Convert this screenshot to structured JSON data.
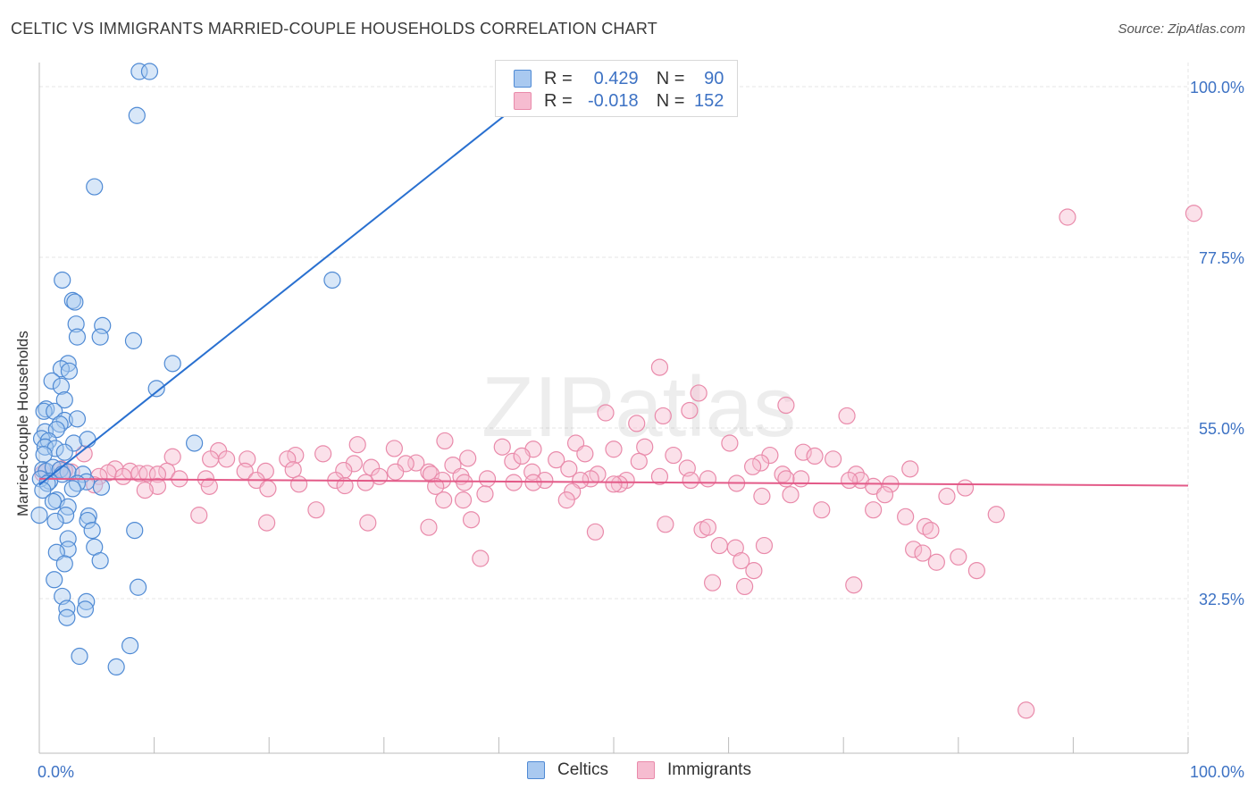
{
  "title": "CELTIC VS IMMIGRANTS MARRIED-COUPLE HOUSEHOLDS CORRELATION CHART",
  "source": "Source: ZipAtlas.com",
  "watermark": "ZIPatlas",
  "legend_stats": {
    "celtics": {
      "r_label": "R =",
      "r_value": "0.429",
      "n_label": "N =",
      "n_value": "90"
    },
    "immigrants": {
      "r_label": "R =",
      "r_value": "-0.018",
      "n_label": "N =",
      "n_value": "152"
    }
  },
  "legend_bottom": {
    "celtics": "Celtics",
    "immigrants": "Immigrants"
  },
  "colors": {
    "celtics_fill": "#a9c9f0",
    "celtics_stroke": "#4f8ad4",
    "celtics_line": "#2970d0",
    "immigrants_fill": "#f6bcd0",
    "immigrants_stroke": "#e98aaa",
    "immigrants_line": "#e35a88",
    "axis_text": "#3d72c4",
    "grid": "#e6e6e6"
  },
  "chart_data": {
    "type": "scatter",
    "title": "CELTIC VS IMMIGRANTS MARRIED-COUPLE HOUSEHOLDS CORRELATION CHART",
    "xlabel": "",
    "ylabel": "Married-couple Households",
    "xlim": [
      0,
      100
    ],
    "ylim": [
      12,
      102
    ],
    "x_tick_labels": [
      "0.0%",
      "100.0%"
    ],
    "y_ticks": [
      32.5,
      55.0,
      77.5,
      100.0
    ],
    "y_tick_labels": [
      "32.5%",
      "55.0%",
      "77.5%",
      "100.0%"
    ],
    "grid": true,
    "legend_position": "top-center",
    "series": [
      {
        "name": "Celtics",
        "r": 0.429,
        "n": 90,
        "trend": {
          "x": [
            0,
            45.5
          ],
          "y": [
            47.5,
            102.2
          ]
        },
        "points": [
          [
            8.7,
            102
          ],
          [
            9.6,
            102
          ],
          [
            8.5,
            96.2
          ],
          [
            4.8,
            86.8
          ],
          [
            25.5,
            74.5
          ],
          [
            2.0,
            74.5
          ],
          [
            2.9,
            71.8
          ],
          [
            3.1,
            71.6
          ],
          [
            3.2,
            68.7
          ],
          [
            5.5,
            68.5
          ],
          [
            3.3,
            67
          ],
          [
            5.3,
            67
          ],
          [
            8.2,
            66.5
          ],
          [
            11.6,
            63.5
          ],
          [
            2.5,
            63.5
          ],
          [
            1.9,
            62.8
          ],
          [
            2.6,
            62.5
          ],
          [
            1.1,
            61.2
          ],
          [
            1.9,
            60.5
          ],
          [
            2.2,
            58.7
          ],
          [
            10.2,
            60.2
          ],
          [
            0.6,
            57.5
          ],
          [
            0.4,
            57.2
          ],
          [
            1.3,
            57.2
          ],
          [
            2.2,
            56
          ],
          [
            3.3,
            56.2
          ],
          [
            1.8,
            55.5
          ],
          [
            0.5,
            54.5
          ],
          [
            1.5,
            54.8
          ],
          [
            0.2,
            53.6
          ],
          [
            0.8,
            53.3
          ],
          [
            3.0,
            53.0
          ],
          [
            13.5,
            53.0
          ],
          [
            4.2,
            53.5
          ],
          [
            0.5,
            52.5
          ],
          [
            1.4,
            52.3
          ],
          [
            2.2,
            51.8
          ],
          [
            0.4,
            51.5
          ],
          [
            0.3,
            49.5
          ],
          [
            0.6,
            49.3
          ],
          [
            1.2,
            49.8
          ],
          [
            1.8,
            49.5
          ],
          [
            2.5,
            49.2
          ],
          [
            3.8,
            48.9
          ],
          [
            2.0,
            48.9
          ],
          [
            0.9,
            48.0
          ],
          [
            0.1,
            48.3
          ],
          [
            4.1,
            47.9
          ],
          [
            3.3,
            47.7
          ],
          [
            0.7,
            47.7
          ],
          [
            5.4,
            47.2
          ],
          [
            2.9,
            47.0
          ],
          [
            0.3,
            46.8
          ],
          [
            0.0,
            43.5
          ],
          [
            1.5,
            45.5
          ],
          [
            1.2,
            45.3
          ],
          [
            4.3,
            43.4
          ],
          [
            2.5,
            44.6
          ],
          [
            4.2,
            42.8
          ],
          [
            2.3,
            43.5
          ],
          [
            1.4,
            42.7
          ],
          [
            4.6,
            41.5
          ],
          [
            8.3,
            41.5
          ],
          [
            2.5,
            40.4
          ],
          [
            4.8,
            39.3
          ],
          [
            2.5,
            39.0
          ],
          [
            1.5,
            38.6
          ],
          [
            5.3,
            37.5
          ],
          [
            2.2,
            37.1
          ],
          [
            1.3,
            35.0
          ],
          [
            8.6,
            34.0
          ],
          [
            2.0,
            32.8
          ],
          [
            4.1,
            32.1
          ],
          [
            2.4,
            31.2
          ],
          [
            4.0,
            31.1
          ],
          [
            2.4,
            30.0
          ],
          [
            7.9,
            26.3
          ],
          [
            3.5,
            24.9
          ],
          [
            6.7,
            23.5
          ]
        ]
      },
      {
        "name": "Immigrants",
        "r": -0.018,
        "n": 152,
        "trend": {
          "x": [
            0,
            100
          ],
          "y": [
            48.3,
            47.4
          ]
        },
        "points": [
          [
            89.5,
            82.8
          ],
          [
            100.5,
            83.3
          ],
          [
            54.0,
            63.0
          ],
          [
            57.4,
            59.6
          ],
          [
            65.0,
            58.0
          ],
          [
            56.6,
            57.3
          ],
          [
            49.3,
            57.0
          ],
          [
            70.3,
            56.6
          ],
          [
            54.3,
            56.6
          ],
          [
            52.0,
            55.6
          ],
          [
            60.1,
            53.0
          ],
          [
            35.3,
            53.3
          ],
          [
            46.7,
            53.0
          ],
          [
            27.7,
            52.8
          ],
          [
            52.7,
            52.5
          ],
          [
            15.6,
            52.0
          ],
          [
            40.3,
            52.5
          ],
          [
            30.9,
            52.3
          ],
          [
            43.0,
            52.2
          ],
          [
            50.0,
            52.2
          ],
          [
            22.3,
            51.4
          ],
          [
            24.7,
            51.6
          ],
          [
            47.5,
            51.6
          ],
          [
            55.2,
            51.4
          ],
          [
            63.6,
            51.4
          ],
          [
            66.5,
            51.8
          ],
          [
            67.5,
            51.3
          ],
          [
            16.3,
            50.9
          ],
          [
            18.1,
            50.9
          ],
          [
            21.6,
            50.9
          ],
          [
            32.8,
            50.4
          ],
          [
            37.3,
            51.0
          ],
          [
            41.2,
            50.6
          ],
          [
            42.0,
            51.3
          ],
          [
            45.0,
            50.8
          ],
          [
            52.2,
            50.6
          ],
          [
            62.8,
            50.4
          ],
          [
            69.1,
            50.9
          ],
          [
            3.9,
            51.6
          ],
          [
            11.6,
            51.2
          ],
          [
            14.9,
            50.9
          ],
          [
            27.4,
            50.3
          ],
          [
            28.9,
            49.8
          ],
          [
            31.9,
            50.3
          ],
          [
            33.9,
            49.2
          ],
          [
            36.0,
            50.1
          ],
          [
            42.9,
            49.2
          ],
          [
            46.1,
            49.6
          ],
          [
            48.6,
            48.9
          ],
          [
            56.4,
            49.7
          ],
          [
            62.1,
            49.9
          ],
          [
            64.7,
            48.9
          ],
          [
            71.1,
            48.9
          ],
          [
            75.8,
            49.6
          ],
          [
            19.7,
            49.3
          ],
          [
            11.1,
            49.3
          ],
          [
            6.6,
            49.6
          ],
          [
            6.0,
            49.1
          ],
          [
            0.3,
            49.0
          ],
          [
            0.6,
            49.3
          ],
          [
            1.9,
            49.6
          ],
          [
            2.8,
            49.2
          ],
          [
            7.9,
            49.3
          ],
          [
            8.7,
            49.0
          ],
          [
            9.4,
            49.0
          ],
          [
            17.9,
            49.3
          ],
          [
            22.1,
            49.5
          ],
          [
            26.5,
            49.4
          ],
          [
            29.6,
            48.6
          ],
          [
            31.0,
            49.2
          ],
          [
            34.1,
            48.9
          ],
          [
            36.7,
            48.6
          ],
          [
            44.0,
            48.1
          ],
          [
            48.0,
            48.3
          ],
          [
            51.1,
            48.1
          ],
          [
            54.0,
            48.6
          ],
          [
            58.2,
            48.3
          ],
          [
            66.3,
            48.3
          ],
          [
            71.5,
            48.1
          ],
          [
            74.1,
            47.6
          ],
          [
            2.2,
            49.4
          ],
          [
            5.2,
            48.6
          ],
          [
            7.3,
            48.6
          ],
          [
            10.3,
            48.9
          ],
          [
            12.2,
            48.3
          ],
          [
            14.5,
            48.3
          ],
          [
            18.9,
            48.1
          ],
          [
            22.6,
            47.6
          ],
          [
            25.8,
            48.1
          ],
          [
            28.4,
            47.8
          ],
          [
            35.1,
            48.1
          ],
          [
            37.0,
            47.8
          ],
          [
            39.0,
            48.3
          ],
          [
            41.3,
            47.8
          ],
          [
            43.0,
            47.8
          ],
          [
            47.1,
            48.1
          ],
          [
            50.5,
            47.6
          ],
          [
            56.7,
            48.1
          ],
          [
            65.0,
            48.3
          ],
          [
            70.5,
            48.1
          ],
          [
            72.6,
            47.3
          ],
          [
            4.8,
            47.5
          ],
          [
            10.3,
            47.3
          ],
          [
            14.8,
            47.3
          ],
          [
            19.9,
            47.0
          ],
          [
            26.6,
            47.4
          ],
          [
            34.5,
            47.3
          ],
          [
            46.4,
            46.6
          ],
          [
            50.0,
            47.6
          ],
          [
            60.7,
            47.7
          ],
          [
            62.9,
            46.0
          ],
          [
            65.4,
            46.2
          ],
          [
            73.6,
            46.2
          ],
          [
            79.0,
            46.0
          ],
          [
            80.6,
            47.1
          ],
          [
            83.3,
            43.6
          ],
          [
            38.8,
            46.3
          ],
          [
            13.9,
            43.5
          ],
          [
            19.8,
            42.5
          ],
          [
            24.1,
            44.2
          ],
          [
            28.6,
            42.5
          ],
          [
            33.9,
            41.9
          ],
          [
            37.6,
            42.9
          ],
          [
            48.4,
            41.3
          ],
          [
            54.5,
            42.3
          ],
          [
            57.7,
            41.6
          ],
          [
            58.2,
            41.9
          ],
          [
            68.1,
            44.2
          ],
          [
            72.6,
            44.2
          ],
          [
            75.4,
            43.3
          ],
          [
            77.1,
            42.0
          ],
          [
            77.6,
            41.5
          ],
          [
            45.9,
            45.5
          ],
          [
            35.2,
            45.5
          ],
          [
            36.9,
            45.5
          ],
          [
            9.2,
            46.8
          ],
          [
            76.1,
            39.0
          ],
          [
            80.0,
            38.0
          ],
          [
            76.9,
            38.5
          ],
          [
            59.2,
            39.5
          ],
          [
            60.6,
            39.2
          ],
          [
            61.1,
            37.5
          ],
          [
            63.1,
            39.5
          ],
          [
            38.4,
            37.8
          ],
          [
            58.6,
            34.6
          ],
          [
            61.4,
            34.1
          ],
          [
            62.2,
            36.2
          ],
          [
            78.1,
            37.3
          ],
          [
            81.6,
            36.2
          ],
          [
            70.9,
            34.3
          ],
          [
            85.9,
            17.8
          ]
        ]
      }
    ]
  }
}
